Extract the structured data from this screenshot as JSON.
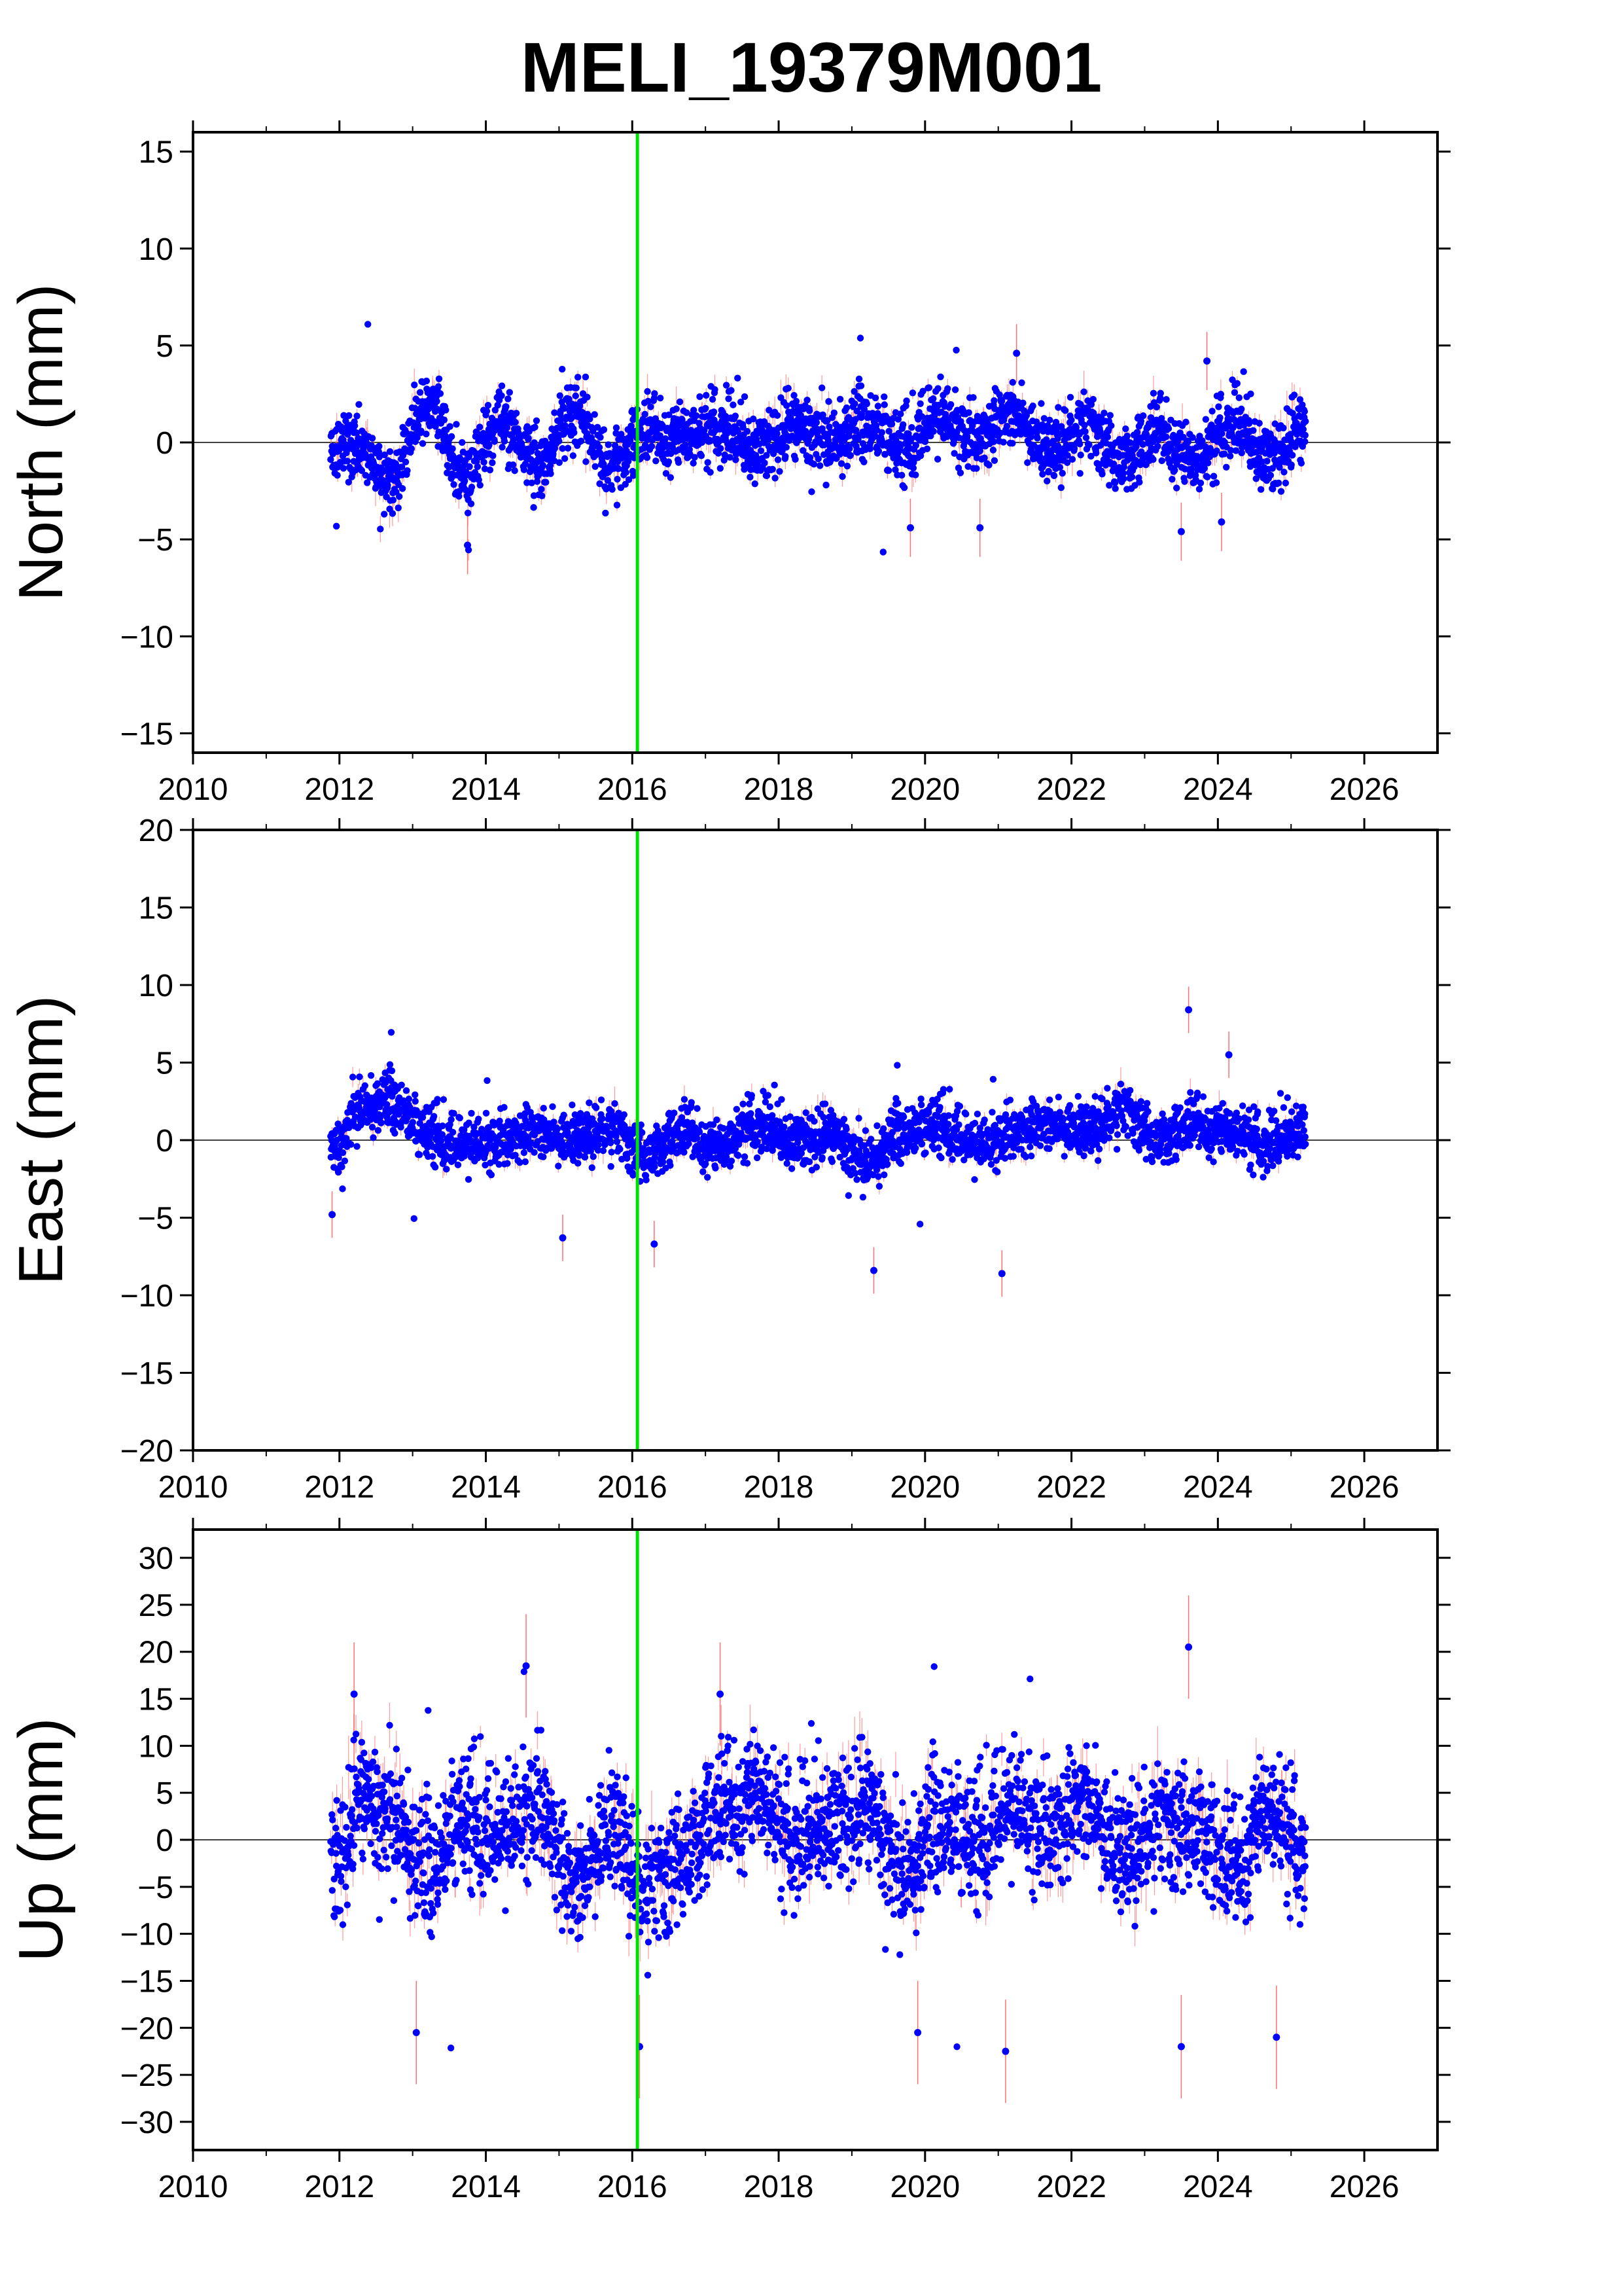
{
  "figure": {
    "title": "MELI_19379M001",
    "colors": {
      "point": "#0000ff",
      "errorbar": "#ff7070",
      "marker_line": "#00e000",
      "zero_line": "#000000",
      "frame": "#000000"
    }
  },
  "chart_data": [
    {
      "type": "scatter",
      "ylabel": "North (mm)",
      "xlim": [
        2010,
        2027
      ],
      "ylim": [
        -16,
        16
      ],
      "x_ticks": [
        "2010",
        "2012",
        "2014",
        "2016",
        "2018",
        "2020",
        "2022",
        "2024",
        "2026"
      ],
      "y_ticks": [
        "15",
        "10",
        "5",
        "0",
        "−5",
        "−10",
        "−15"
      ],
      "y_tick_values": [
        15,
        10,
        5,
        0,
        -5,
        -10,
        -15
      ],
      "marker_line_x": 2016.07,
      "zero_line": true,
      "grid": false,
      "series": [
        {
          "x": [
            2011.95,
            2012.3,
            2012.7,
            2013.2,
            2013.7,
            2014.2,
            2014.7,
            2015.2,
            2015.7,
            2016.2,
            2016.7,
            2017.2,
            2017.7,
            2018.2,
            2018.7,
            2019.2,
            2019.7,
            2020.2,
            2020.7,
            2021.2,
            2021.7,
            2022.2,
            2022.7,
            2023.2,
            2023.7,
            2024.2,
            2024.7,
            2025.15
          ],
          "y": [
            0.0,
            -0.5,
            -2.0,
            2.0,
            -1.8,
            1.0,
            -1.0,
            1.5,
            -1.2,
            0.5,
            0.3,
            0.8,
            -0.3,
            1.0,
            0.0,
            1.0,
            -0.2,
            1.2,
            0.2,
            1.5,
            -0.5,
            1.0,
            -1.0,
            0.5,
            -1.0,
            1.0,
            -0.8,
            0.8
          ],
          "y_outliers": [
            [
              2013.75,
              -5.3
            ],
            [
              2021.25,
              4.6
            ],
            [
              2023.85,
              4.2
            ],
            [
              2023.5,
              -4.6
            ],
            [
              2024.05,
              -4.1
            ],
            [
              2020.75,
              -4.4
            ],
            [
              2019.8,
              -4.4
            ]
          ]
        }
      ]
    },
    {
      "type": "scatter",
      "ylabel": "East (mm)",
      "xlim": [
        2010,
        2027
      ],
      "ylim": [
        -20,
        20
      ],
      "x_ticks": [
        "2010",
        "2012",
        "2014",
        "2016",
        "2018",
        "2020",
        "2022",
        "2024",
        "2026"
      ],
      "y_ticks": [
        "20",
        "15",
        "10",
        "5",
        "0",
        "−5",
        "−10",
        "−15",
        "−20"
      ],
      "y_tick_values": [
        20,
        15,
        10,
        5,
        0,
        -5,
        -10,
        -15,
        -20
      ],
      "marker_line_x": 2016.07,
      "zero_line": true,
      "grid": false,
      "series": [
        {
          "x": [
            2011.95,
            2012.3,
            2012.7,
            2013.2,
            2013.7,
            2014.2,
            2014.7,
            2015.2,
            2015.7,
            2016.2,
            2016.7,
            2017.2,
            2017.7,
            2018.2,
            2018.7,
            2019.2,
            2019.7,
            2020.2,
            2020.7,
            2021.2,
            2021.7,
            2022.2,
            2022.7,
            2023.2,
            2023.7,
            2024.2,
            2024.7,
            2025.15
          ],
          "y": [
            -0.5,
            2.0,
            2.5,
            0.5,
            -0.5,
            0.0,
            0.5,
            0.0,
            0.8,
            -1.0,
            0.5,
            -0.5,
            1.0,
            0.0,
            0.5,
            -1.5,
            0.5,
            1.0,
            -0.5,
            0.5,
            1.0,
            0.5,
            2.0,
            0.0,
            1.0,
            0.5,
            -0.3,
            0.8
          ],
          "y_outliers": [
            [
              2023.6,
              8.4
            ],
            [
              2024.15,
              5.5
            ],
            [
              2019.3,
              -8.4
            ],
            [
              2021.05,
              -8.6
            ],
            [
              2011.9,
              -4.8
            ],
            [
              2016.3,
              -6.7
            ],
            [
              2015.05,
              -6.3
            ]
          ]
        }
      ]
    },
    {
      "type": "scatter",
      "ylabel": "Up (mm)",
      "xlim": [
        2010,
        2027
      ],
      "ylim": [
        -33,
        33
      ],
      "x_ticks": [
        "2010",
        "2012",
        "2014",
        "2016",
        "2018",
        "2020",
        "2022",
        "2024",
        "2026"
      ],
      "y_ticks": [
        "30",
        "25",
        "20",
        "15",
        "10",
        "5",
        "0",
        "−5",
        "−10",
        "−15",
        "−20",
        "−25",
        "−30"
      ],
      "y_tick_values": [
        30,
        25,
        20,
        15,
        10,
        5,
        0,
        -5,
        -10,
        -15,
        -20,
        -25,
        -30
      ],
      "marker_line_x": 2016.07,
      "zero_line": true,
      "grid": false,
      "series": [
        {
          "x": [
            2011.95,
            2012.3,
            2012.7,
            2013.2,
            2013.7,
            2014.2,
            2014.7,
            2015.2,
            2015.7,
            2016.2,
            2016.7,
            2017.2,
            2017.7,
            2018.2,
            2018.7,
            2019.2,
            2019.7,
            2020.2,
            2020.7,
            2021.2,
            2021.7,
            2022.2,
            2022.7,
            2023.2,
            2023.7,
            2024.2,
            2024.7,
            2025.15
          ],
          "y": [
            -2.0,
            5.0,
            2.0,
            -3.0,
            2.5,
            0.0,
            4.0,
            -5.0,
            1.0,
            -5.0,
            -2.0,
            3.0,
            5.0,
            0.0,
            2.0,
            4.0,
            -4.0,
            2.0,
            0.0,
            3.0,
            1.0,
            4.0,
            -2.0,
            2.0,
            1.0,
            -3.0,
            3.0,
            -1.0
          ],
          "y_outliers": [
            [
              2023.6,
              20.5
            ],
            [
              2014.55,
              18.5
            ],
            [
              2012.2,
              15.5
            ],
            [
              2017.2,
              15.5
            ],
            [
              2016.1,
              -22.0
            ],
            [
              2021.1,
              -22.5
            ],
            [
              2023.5,
              -22.0
            ],
            [
              2024.8,
              -21.0
            ],
            [
              2013.05,
              -20.5
            ],
            [
              2019.9,
              -20.5
            ]
          ]
        }
      ]
    }
  ]
}
